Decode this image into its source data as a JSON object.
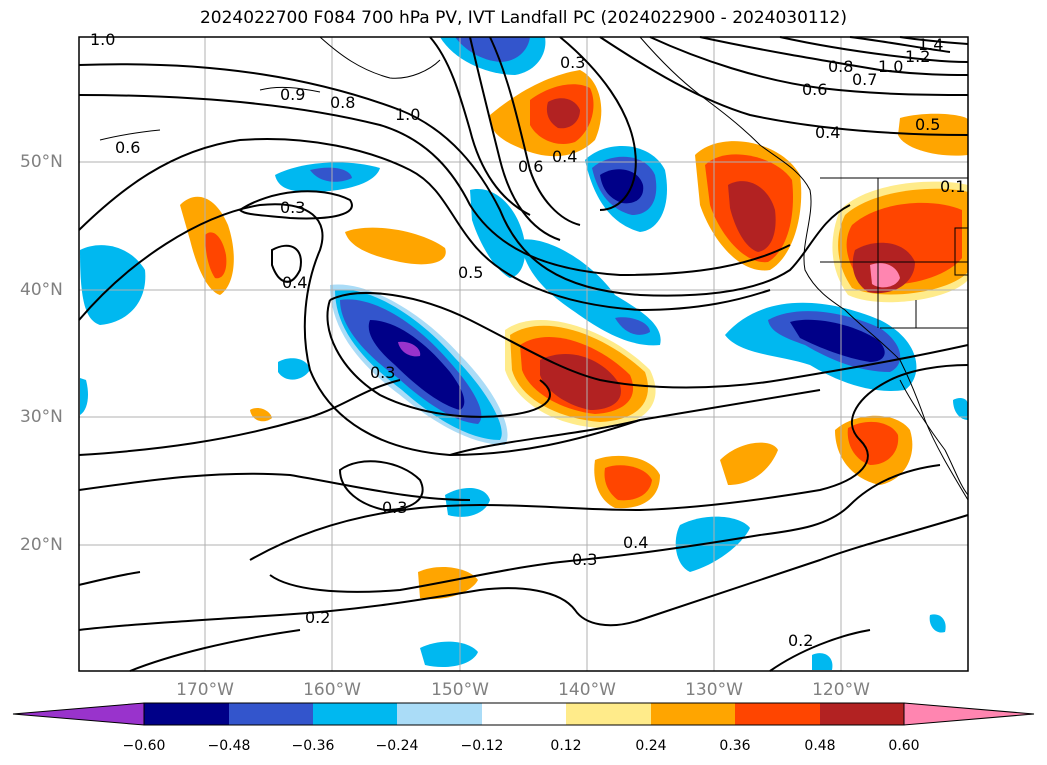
{
  "title": "2024022700 F084 700 hPa PV, IVT Landfall PC (2024022900 - 2024030112)",
  "lat_labels": [
    "50°N",
    "40°N",
    "30°N",
    "20°N"
  ],
  "lon_labels": [
    "170°W",
    "160°W",
    "150°W",
    "140°W",
    "130°W",
    "120°W"
  ],
  "contour_labels": [
    "1.0",
    "0.3",
    "0.9",
    "0.8",
    "1.0",
    "0.6",
    "0.4",
    "0.6",
    "0.3",
    "0.4",
    "0.5",
    "0.3",
    "0.3",
    "0.3",
    "0.4",
    "0.2",
    "0.2",
    "0.8",
    "1.0",
    "1.2",
    "1.4",
    "0.7",
    "0.6",
    "0.4",
    "0.5",
    "0.1"
  ],
  "colorbar": {
    "ticks": [
      "−0.60",
      "−0.48",
      "−0.36",
      "−0.24",
      "−0.12",
      "0.12",
      "0.24",
      "0.36",
      "0.48",
      "0.60"
    ],
    "colors": [
      "#9933cc",
      "#000088",
      "#3355cc",
      "#00b8f0",
      "#aadcf7",
      "#ffffff",
      "#ffeb8a",
      "#ffa500",
      "#ff4500",
      "#b22222",
      "#ff85b0"
    ]
  }
}
